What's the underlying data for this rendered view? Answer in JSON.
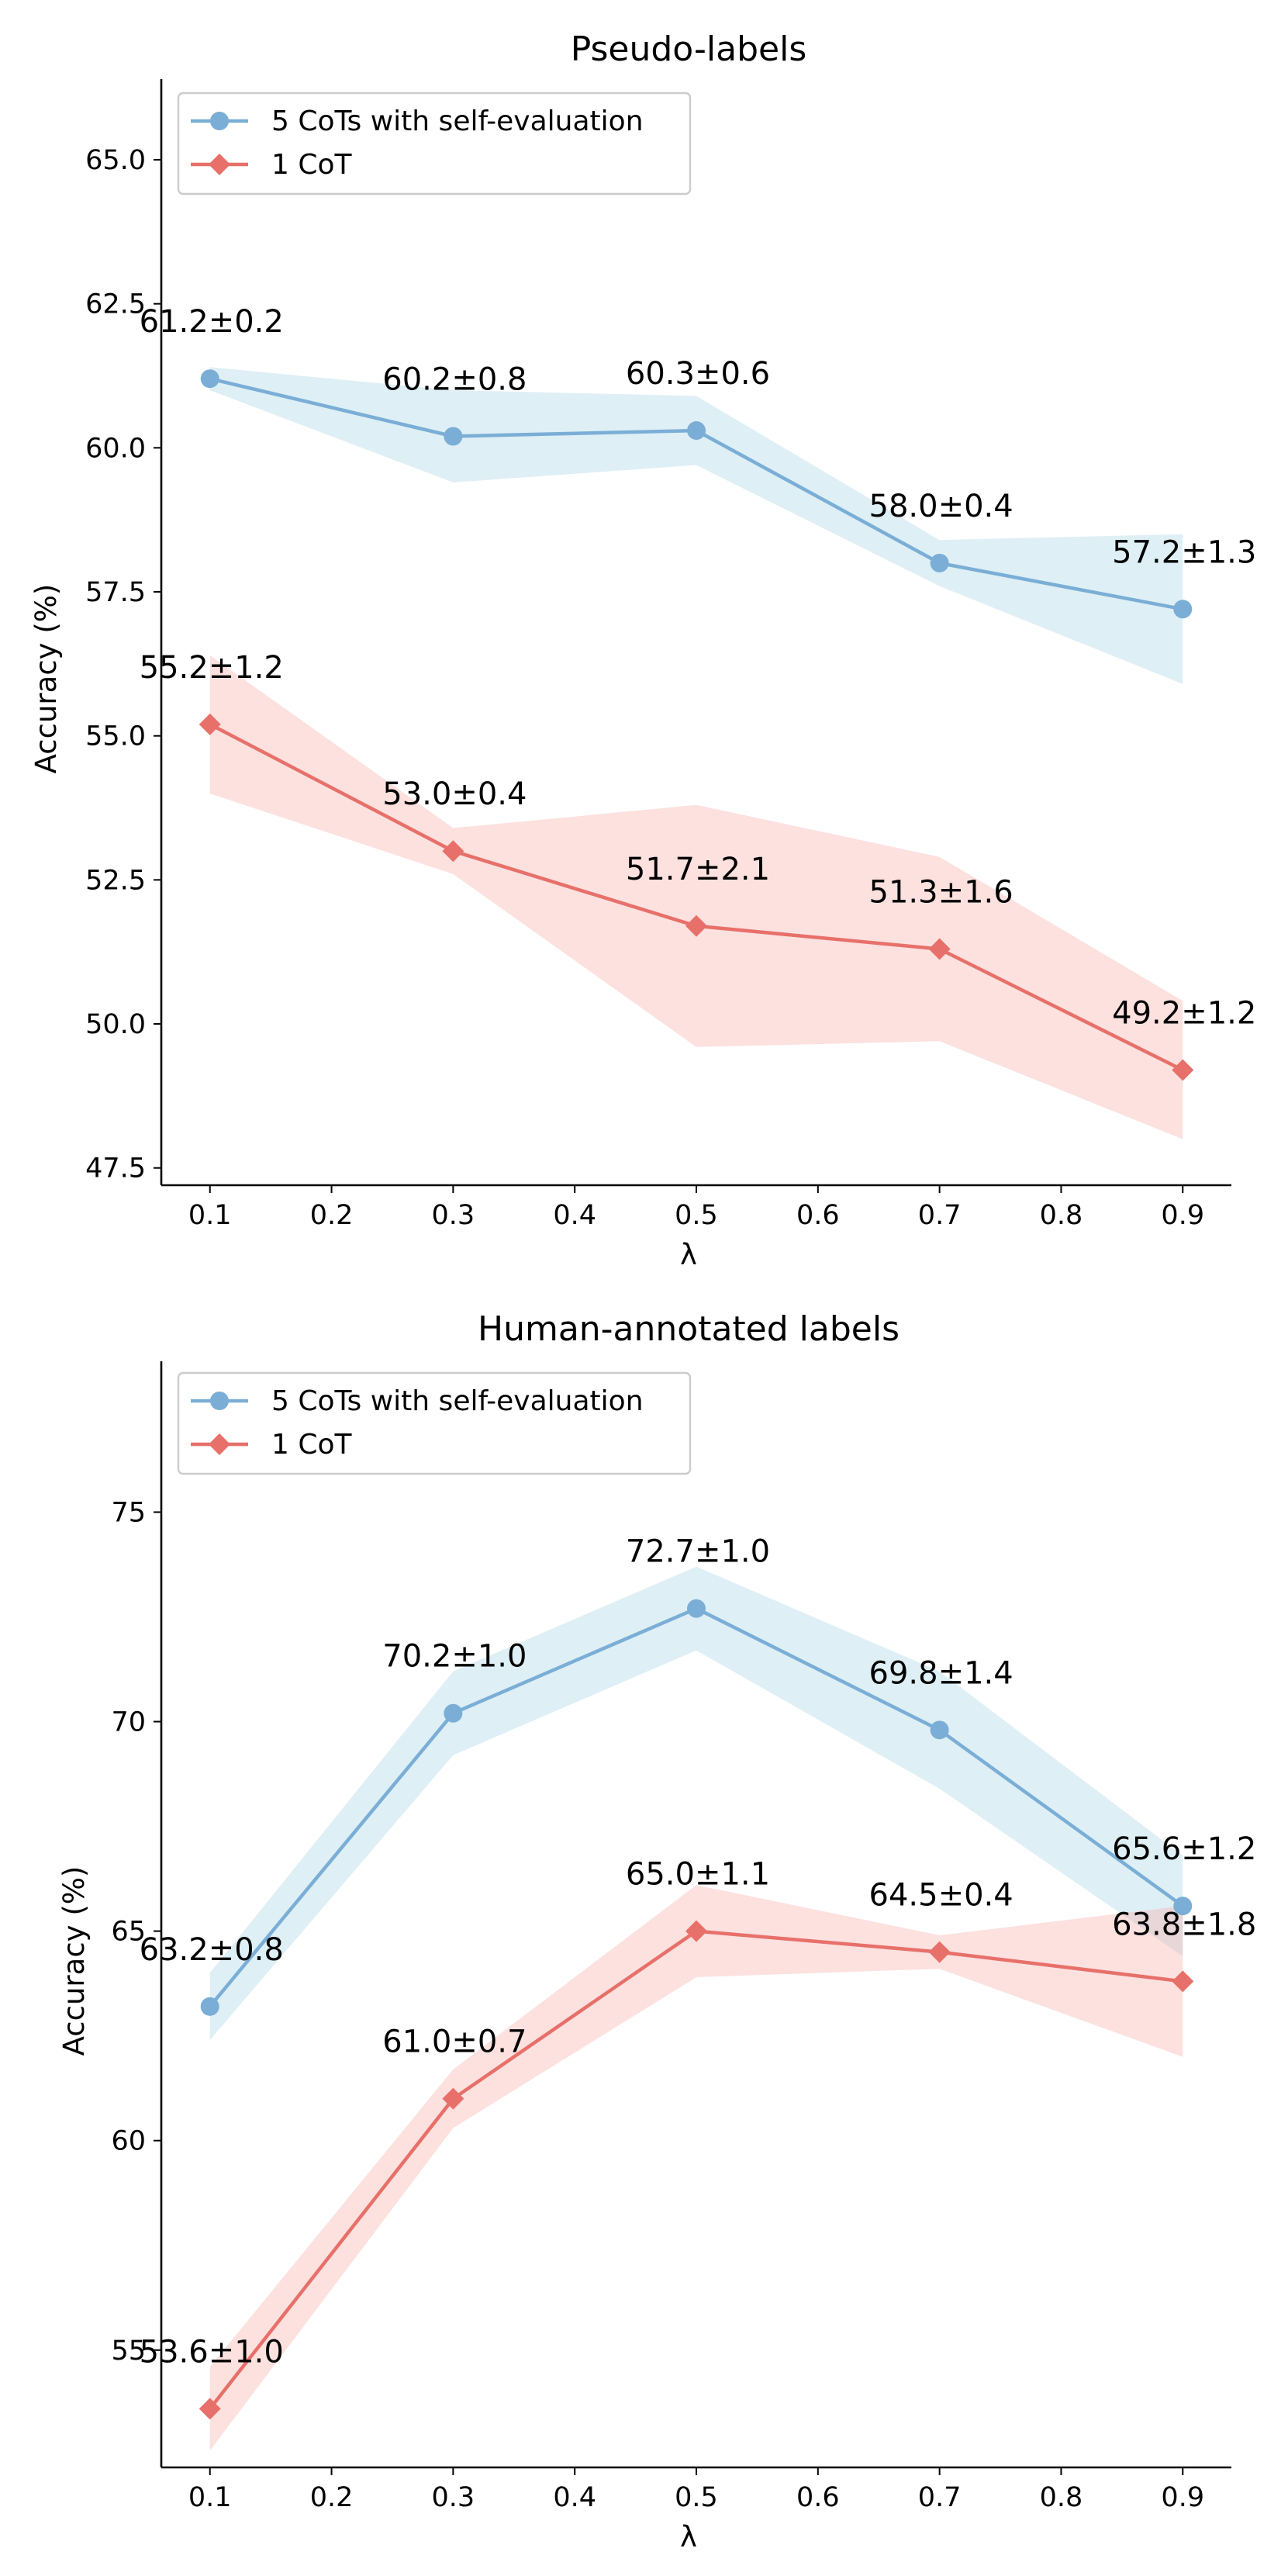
{
  "chart_data": [
    {
      "type": "line",
      "title": "Pseudo-labels",
      "xlabel": "λ",
      "ylabel": "Accuracy (%)",
      "x": [
        0.1,
        0.3,
        0.5,
        0.7,
        0.9
      ],
      "xticks": [
        "0.1",
        "0.2",
        "0.3",
        "0.4",
        "0.5",
        "0.6",
        "0.7",
        "0.8",
        "0.9"
      ],
      "xtick_values": [
        0.1,
        0.2,
        0.3,
        0.4,
        0.5,
        0.6,
        0.7,
        0.8,
        0.9
      ],
      "yticks": [
        "47.5",
        "50.0",
        "52.5",
        "55.0",
        "57.5",
        "60.0",
        "62.5",
        "65.0"
      ],
      "ytick_values": [
        47.5,
        50.0,
        52.5,
        55.0,
        57.5,
        60.0,
        62.5,
        65.0
      ],
      "xlim": [
        0.06,
        0.94
      ],
      "ylim": [
        47.2,
        66.4
      ],
      "grid": false,
      "legend": "top-left",
      "series": [
        {
          "name": "5 CoTs with self-evaluation",
          "color": "#7aaed6",
          "band_color": "#add8e6",
          "marker": "circle",
          "values": [
            61.2,
            60.2,
            60.3,
            58.0,
            57.2
          ],
          "band_upper": [
            61.4,
            61.0,
            60.9,
            58.4,
            58.5
          ],
          "band_lower": [
            61.0,
            59.4,
            59.7,
            57.6,
            55.9
          ],
          "labels": [
            "61.2±0.2",
            "60.2±0.8",
            "60.3±0.6",
            "58.0±0.4",
            "57.2±1.3"
          ]
        },
        {
          "name": "1 CoT",
          "color": "#e8706a",
          "band_color": "#f7b3ae",
          "marker": "diamond",
          "values": [
            55.2,
            53.0,
            51.7,
            51.3,
            49.2
          ],
          "band_upper": [
            56.4,
            53.4,
            53.8,
            52.9,
            50.4
          ],
          "band_lower": [
            54.0,
            52.6,
            49.6,
            49.7,
            48.0
          ],
          "labels": [
            "55.2±1.2",
            "53.0±0.4",
            "51.7±2.1",
            "51.3±1.6",
            "49.2±1.2"
          ]
        }
      ]
    },
    {
      "type": "line",
      "title": "Human-annotated labels",
      "xlabel": "λ",
      "ylabel": "Accuracy (%)",
      "x": [
        0.1,
        0.3,
        0.5,
        0.7,
        0.9
      ],
      "xticks": [
        "0.1",
        "0.2",
        "0.3",
        "0.4",
        "0.5",
        "0.6",
        "0.7",
        "0.8",
        "0.9"
      ],
      "xtick_values": [
        0.1,
        0.2,
        0.3,
        0.4,
        0.5,
        0.6,
        0.7,
        0.8,
        0.9
      ],
      "yticks": [
        "55",
        "60",
        "65",
        "70",
        "75"
      ],
      "ytick_values": [
        55,
        60,
        65,
        70,
        75
      ],
      "xlim": [
        0.06,
        0.94
      ],
      "ylim": [
        52.2,
        78.6
      ],
      "grid": false,
      "legend": "top-left",
      "series": [
        {
          "name": "5 CoTs with self-evaluation",
          "color": "#7aaed6",
          "band_color": "#add8e6",
          "marker": "circle",
          "values": [
            63.2,
            70.2,
            72.7,
            69.8,
            65.6
          ],
          "band_upper": [
            64.0,
            71.2,
            73.7,
            71.2,
            66.8
          ],
          "band_lower": [
            62.4,
            69.2,
            71.7,
            68.4,
            64.4
          ],
          "labels": [
            "63.2±0.8",
            "70.2±1.0",
            "72.7±1.0",
            "69.8±1.4",
            "65.6±1.2"
          ]
        },
        {
          "name": "1 CoT",
          "color": "#e8706a",
          "band_color": "#f7b3ae",
          "marker": "diamond",
          "values": [
            53.6,
            61.0,
            65.0,
            64.5,
            63.8
          ],
          "band_upper": [
            54.6,
            61.7,
            66.1,
            64.9,
            65.6
          ],
          "band_lower": [
            52.6,
            60.3,
            63.9,
            64.1,
            62.0
          ],
          "labels": [
            "53.6±1.0",
            "61.0±0.7",
            "65.0±1.1",
            "64.5±0.4",
            "63.8±1.8"
          ]
        }
      ]
    }
  ]
}
